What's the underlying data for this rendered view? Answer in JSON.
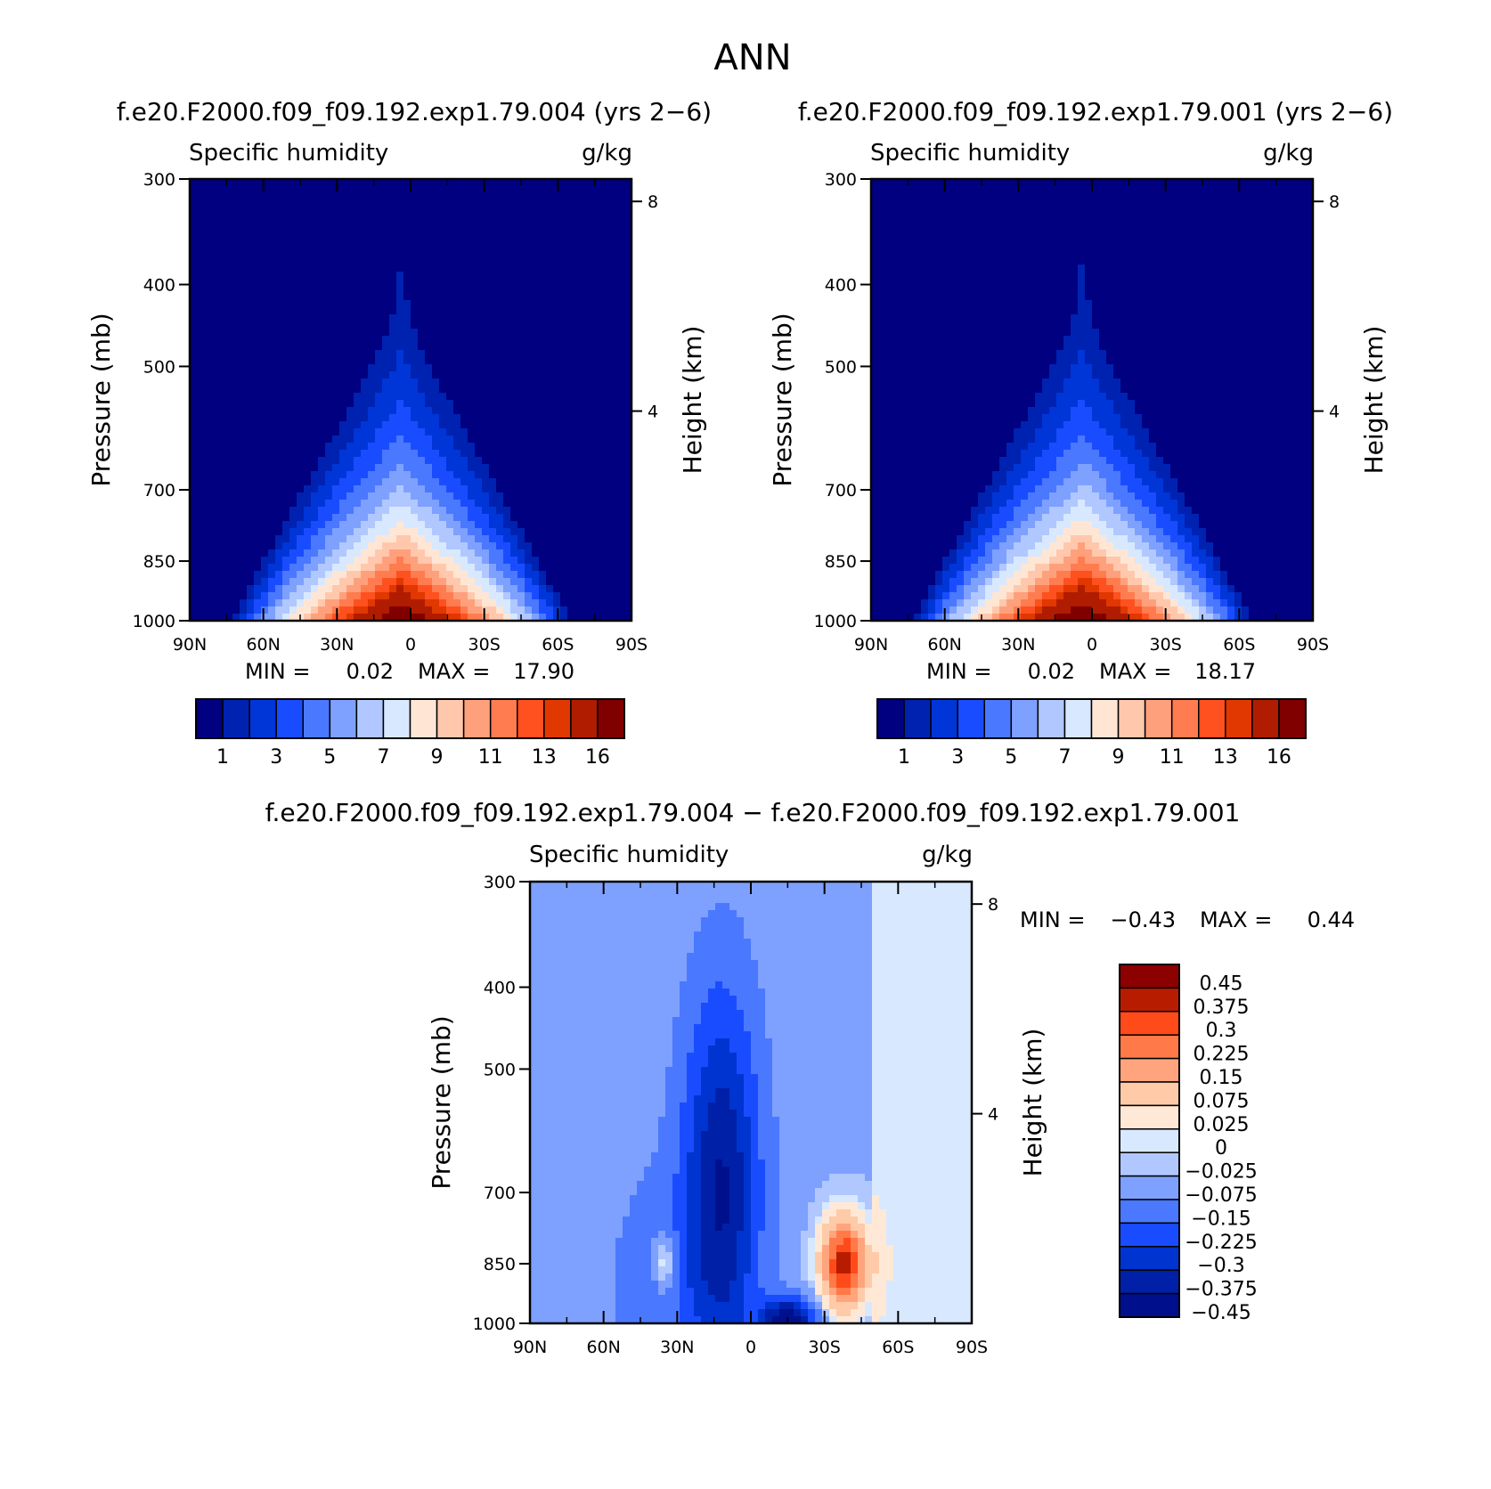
{
  "figure": {
    "title": "ANN"
  },
  "palettes": {
    "humidity": [
      "#000080",
      "#0022b0",
      "#0036d8",
      "#1a4cff",
      "#4a78ff",
      "#7ea0ff",
      "#b0c8ff",
      "#d8e8ff",
      "#ffe6d4",
      "#ffc8ac",
      "#ffa07c",
      "#ff7c50",
      "#ff5020",
      "#e03800",
      "#b01c00",
      "#800000"
    ],
    "difference": [
      "#8c0000",
      "#b81c00",
      "#ff4a1a",
      "#ff7a48",
      "#ffa47c",
      "#ffcaa8",
      "#ffe8d6",
      "#d8e8ff",
      "#b0c8ff",
      "#7ea0ff",
      "#4a78ff",
      "#1a4cff",
      "#0034d0",
      "#0020a8",
      "#00108c"
    ]
  },
  "chart_data": [
    {
      "type": "contour",
      "run_title": "f.e20.F2000.f09_f09.192.exp1.79.004 (yrs 2−6)",
      "variable": "Specific humidity",
      "units": "g/kg",
      "ylabel": "Pressure (mb)",
      "y2label": "Height (km)",
      "x_ticks": [
        "90N",
        "60N",
        "30N",
        "0",
        "30S",
        "60S",
        "90S"
      ],
      "x_tick_values": [
        90,
        60,
        30,
        0,
        -30,
        -60,
        -90
      ],
      "y_ticks": [
        "300",
        "400",
        "500",
        "700",
        "850",
        "1000"
      ],
      "y_tick_values": [
        300,
        400,
        500,
        700,
        850,
        1000
      ],
      "y2_ticks": [
        "8",
        "4"
      ],
      "y2_tick_values": [
        8,
        4
      ],
      "ylim": [
        300,
        1000
      ],
      "xlim": [
        90,
        -90
      ],
      "log_pressure": true,
      "min_label": "MIN =",
      "min_value": "0.02",
      "max_label": "MAX =",
      "max_value": "17.90",
      "levels": [
        0,
        1,
        2,
        3,
        4,
        5,
        6,
        7,
        8,
        9,
        10,
        11,
        12,
        13,
        14,
        16
      ],
      "colorbar_labels": [
        "1",
        "3",
        "5",
        "7",
        "9",
        "11",
        "13",
        "16"
      ],
      "field": {
        "peak": 17.9,
        "center_lat": 4,
        "peak_pressure": 1000
      }
    },
    {
      "type": "contour",
      "run_title": "f.e20.F2000.f09_f09.192.exp1.79.001 (yrs 2−6)",
      "variable": "Specific humidity",
      "units": "g/kg",
      "ylabel": "Pressure (mb)",
      "y2label": "Height (km)",
      "x_ticks": [
        "90N",
        "60N",
        "30N",
        "0",
        "30S",
        "60S",
        "90S"
      ],
      "x_tick_values": [
        90,
        60,
        30,
        0,
        -30,
        -60,
        -90
      ],
      "y_ticks": [
        "300",
        "400",
        "500",
        "700",
        "850",
        "1000"
      ],
      "y_tick_values": [
        300,
        400,
        500,
        700,
        850,
        1000
      ],
      "y2_ticks": [
        "8",
        "4"
      ],
      "y2_tick_values": [
        8,
        4
      ],
      "ylim": [
        300,
        1000
      ],
      "xlim": [
        90,
        -90
      ],
      "log_pressure": true,
      "min_label": "MIN =",
      "min_value": "0.02",
      "max_label": "MAX =",
      "max_value": "18.17",
      "levels": [
        0,
        1,
        2,
        3,
        4,
        5,
        6,
        7,
        8,
        9,
        10,
        11,
        12,
        13,
        14,
        16
      ],
      "colorbar_labels": [
        "1",
        "3",
        "5",
        "7",
        "9",
        "11",
        "13",
        "16"
      ],
      "field": {
        "peak": 18.17,
        "center_lat": 4,
        "peak_pressure": 1000
      }
    },
    {
      "type": "contour",
      "run_title": "f.e20.F2000.f09_f09.192.exp1.79.004 − f.e20.F2000.f09_f09.192.exp1.79.001",
      "variable": "Specific humidity",
      "units": "g/kg",
      "ylabel": "Pressure (mb)",
      "y2label": "Height (km)",
      "x_ticks": [
        "90N",
        "60N",
        "30N",
        "0",
        "30S",
        "60S",
        "90S"
      ],
      "x_tick_values": [
        90,
        60,
        30,
        0,
        -30,
        -60,
        -90
      ],
      "y_ticks": [
        "300",
        "400",
        "500",
        "700",
        "850",
        "1000"
      ],
      "y_tick_values": [
        300,
        400,
        500,
        700,
        850,
        1000
      ],
      "y2_ticks": [
        "8",
        "4"
      ],
      "y2_tick_values": [
        8,
        4
      ],
      "ylim": [
        300,
        1000
      ],
      "xlim": [
        90,
        -90
      ],
      "log_pressure": true,
      "min_label": "MIN =",
      "min_value": "−0.43",
      "max_label": "MAX =",
      "max_value": "0.44",
      "levels": [
        0.45,
        0.375,
        0.3,
        0.225,
        0.15,
        0.075,
        0.025,
        0,
        -0.025,
        -0.075,
        -0.15,
        -0.225,
        -0.3,
        -0.375,
        -0.45
      ],
      "colorbar_labels": [
        "0.45",
        "0.375",
        "0.3",
        "0.225",
        "0.15",
        "0.075",
        "0.025",
        "0",
        "−0.025",
        "−0.075",
        "−0.15",
        "−0.225",
        "−0.3",
        "−0.375",
        "−0.45"
      ],
      "features": [
        {
          "lat": -38,
          "pressure": 850,
          "value": 0.44
        },
        {
          "lat": 35,
          "pressure": 850,
          "value": 0.15
        },
        {
          "lat": 12,
          "pressure": 700,
          "value": -0.35
        },
        {
          "lat": -15,
          "pressure": 990,
          "value": -0.43
        },
        {
          "lat": 40,
          "pressure": 900,
          "value": -0.08
        }
      ]
    }
  ]
}
